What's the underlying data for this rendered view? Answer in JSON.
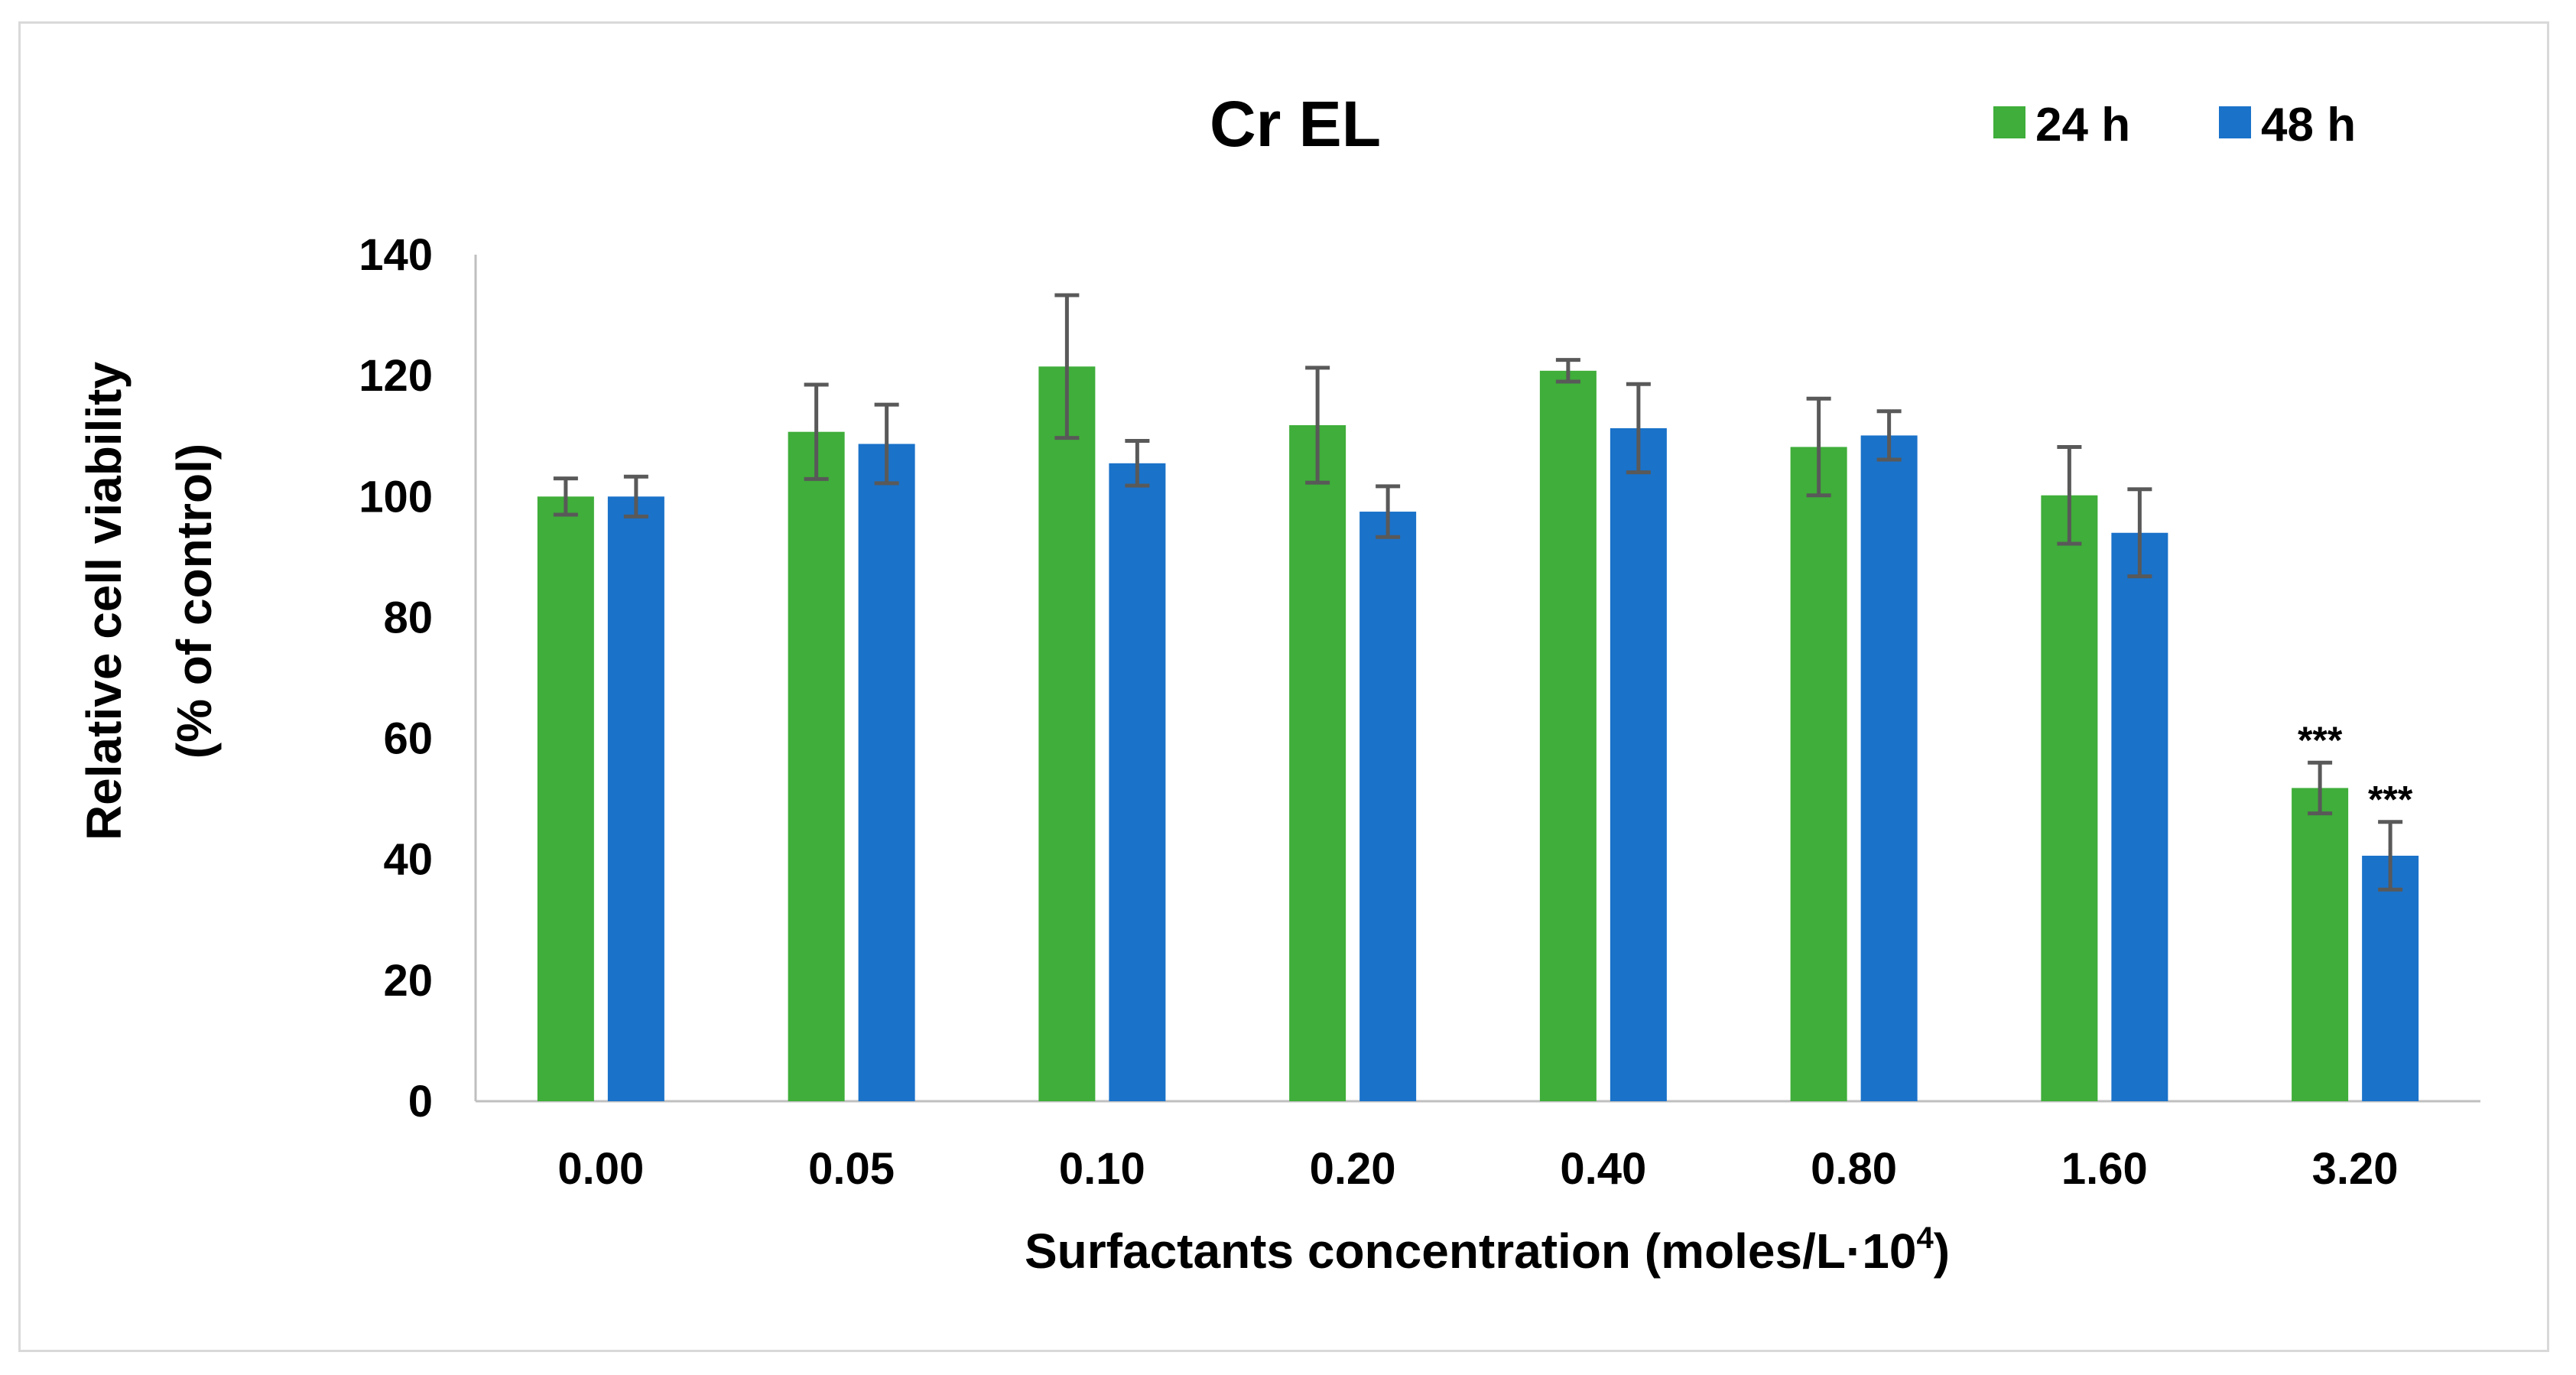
{
  "chart_data": {
    "type": "bar",
    "title": "Cr EL",
    "xlabel": "Surfactants concentration (moles/L·10",
    "xlabel_sup": "4",
    "xlabel_end": ")",
    "ylabel_line1": "Relative cell viability",
    "ylabel_line2": "(% of control)",
    "ylim": [
      0,
      140
    ],
    "yticks": [
      0,
      20,
      40,
      60,
      80,
      100,
      120,
      140
    ],
    "categories": [
      "0.00",
      "0.05",
      "0.10",
      "0.20",
      "0.40",
      "0.80",
      "1.60",
      "3.20"
    ],
    "legend_position": "top-right",
    "series": [
      {
        "name": "24 h",
        "color": "#3fae3a",
        "values": [
          100,
          110.7,
          121.5,
          111.8,
          120.8,
          108.2,
          100.2,
          51.8
        ],
        "errors": [
          3,
          7.8,
          11.8,
          9.5,
          1.8,
          8,
          8,
          4.2
        ],
        "annotations": [
          "",
          "",
          "",
          "",
          "",
          "",
          "",
          "***"
        ]
      },
      {
        "name": "48 h",
        "color": "#1a72c9",
        "values": [
          100,
          108.7,
          105.5,
          97.5,
          111.3,
          110.1,
          94,
          40.6
        ],
        "errors": [
          3.3,
          6.5,
          3.7,
          4.2,
          7.3,
          4,
          7.2,
          5.6
        ],
        "annotations": [
          "",
          "",
          "",
          "",
          "",
          "",
          "",
          "***"
        ]
      }
    ],
    "error_bar_color": "#595959",
    "axis_color": "#bfbfbf"
  }
}
